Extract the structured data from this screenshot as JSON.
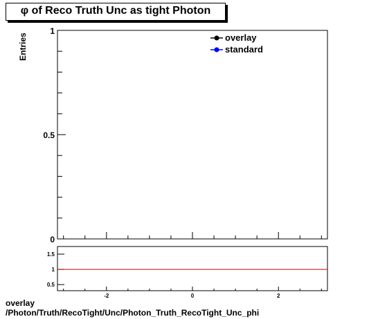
{
  "title": "φ of Reco Truth Unc as tight Photon",
  "footer": {
    "line1": "overlay",
    "line2": "/Photon/Truth/RecoTight/Unc/Photon_Truth_RecoTight_Unc_phi"
  },
  "chart_data": [
    {
      "type": "line",
      "title": "φ of Reco Truth Unc as tight Photon",
      "xlabel": "",
      "ylabel": "Entries",
      "xlim": [
        -3.14,
        3.14
      ],
      "ylim": [
        0,
        1
      ],
      "y_ticks": [
        0,
        0.5,
        1
      ],
      "y_tick_labels": [
        "0",
        "0.5",
        "1"
      ],
      "legend": "top-right",
      "series": [
        {
          "name": "overlay",
          "color": "#000000",
          "x": [],
          "y": []
        },
        {
          "name": "standard",
          "color": "#0000ff",
          "x": [],
          "y": []
        }
      ]
    },
    {
      "type": "line",
      "xlabel": "",
      "ylabel": "",
      "xlim": [
        -3.14,
        3.14
      ],
      "ylim": [
        0.3,
        1.75
      ],
      "x_ticks": [
        -2,
        0,
        2
      ],
      "x_tick_labels": [
        "-2",
        "0",
        "2"
      ],
      "y_ticks": [
        0.5,
        1,
        1.5
      ],
      "y_tick_labels": [
        "0.5",
        "1",
        "1.5"
      ],
      "series": [
        {
          "name": "",
          "color": "#cc0000",
          "x": [
            -3.14,
            3.14
          ],
          "y": [
            1,
            1
          ]
        }
      ]
    }
  ]
}
